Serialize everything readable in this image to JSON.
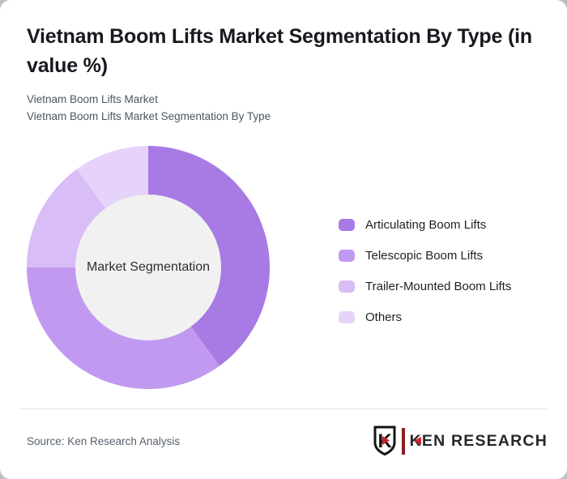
{
  "page": {
    "title_lines": [
      "Vietnam Boom Lifts Market Segmentation By Type (in",
      "value %)"
    ],
    "subtitle_lines": [
      "Vietnam Boom Lifts Market",
      "Vietnam Boom Lifts Market Segmentation By Type"
    ]
  },
  "chart_data": {
    "type": "pie",
    "variant": "donut",
    "title": "Vietnam Boom Lifts Market Segmentation By Type (in value %)",
    "center_label": "Market Segmentation",
    "units": "value %",
    "start_angle_deg": 0,
    "direction": "clockwise",
    "legend_position": "right",
    "categories": [
      "Articulating Boom Lifts",
      "Telescopic Boom Lifts",
      "Trailer-Mounted Boom Lifts",
      "Others"
    ],
    "values": [
      40,
      35,
      15,
      10
    ],
    "colors": [
      "#a87be4",
      "#c299f0",
      "#d9bdf6",
      "#e6d3fa"
    ],
    "hole_color": "#f1f1f1"
  },
  "footer": {
    "source": "Source: Ken Research Analysis",
    "brand": "KEN RESEARCH",
    "brand_accent_color": "#c9252c"
  }
}
